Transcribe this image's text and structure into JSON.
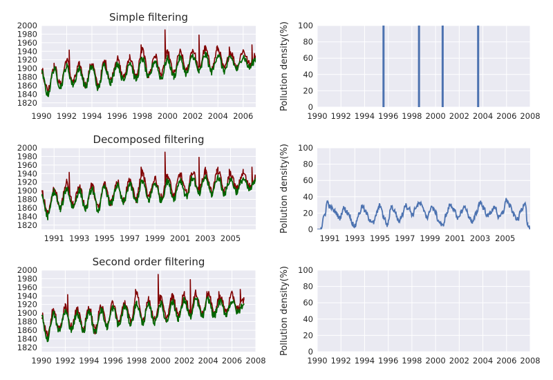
{
  "chart_data": [
    {
      "type": "line",
      "title": "Simple filtering",
      "xlabel": "",
      "ylabel": "",
      "xlim": [
        1990,
        2007
      ],
      "ylim": [
        1810,
        2000
      ],
      "x_ticks": [
        "1990",
        "1992",
        "1994",
        "1996",
        "1998",
        "2000",
        "2002",
        "2004",
        "2006"
      ],
      "x_tick_values": [
        1990,
        1992,
        1994,
        1996,
        1998,
        2000,
        2002,
        2004,
        2006
      ],
      "y_ticks": [
        "1820",
        "1840",
        "1860",
        "1880",
        "1900",
        "1920",
        "1940",
        "1960",
        "1980",
        "2000"
      ],
      "y_tick_values": [
        1820,
        1840,
        1860,
        1880,
        1900,
        1920,
        1940,
        1960,
        1980,
        2000
      ],
      "grid": true,
      "series": [
        {
          "role": "raw",
          "color": "#800000",
          "x": [
            1990,
            1990.5,
            1991,
            1991.5,
            1992,
            1992.5,
            1993,
            1993.5,
            1994,
            1994.5,
            1995,
            1995.5,
            1996,
            1996.5,
            1997,
            1997.5,
            1998,
            1998.5,
            1999,
            1999.5,
            2000,
            2000.5,
            2001,
            2001.5,
            2002,
            2002.5,
            2003,
            2003.5,
            2004,
            2004.5,
            2005,
            2005.5,
            2006,
            2006.5,
            2007
          ],
          "y": [
            1895,
            1850,
            1905,
            1862,
            1918,
            1868,
            1908,
            1862,
            1912,
            1860,
            1915,
            1874,
            1922,
            1878,
            1926,
            1880,
            1942,
            1884,
            1930,
            1884,
            1935,
            1888,
            1938,
            1894,
            1944,
            1899,
            1946,
            1898,
            1946,
            1899,
            1938,
            1904,
            1942,
            1910,
            1930
          ],
          "spikes": [
            [
              1990.1,
              1900
            ],
            [
              1992.2,
              1943
            ],
            [
              1997.9,
              1955
            ],
            [
              1999.8,
              1990
            ],
            [
              2002.5,
              1978
            ],
            [
              2003.9,
              1950
            ],
            [
              2004.9,
              1950
            ],
            [
              2006.7,
              1955
            ]
          ]
        },
        {
          "role": "filtered",
          "color": "#006400",
          "x": [
            1990,
            1990.5,
            1991,
            1991.5,
            1992,
            1992.5,
            1993,
            1993.5,
            1994,
            1994.5,
            1995,
            1995.5,
            1996,
            1996.5,
            1997,
            1997.5,
            1998,
            1998.5,
            1999,
            1999.5,
            2000,
            2000.5,
            2001,
            2001.5,
            2002,
            2002.5,
            2003,
            2003.5,
            2004,
            2004.5,
            2005,
            2005.5,
            2006,
            2006.5,
            2007
          ],
          "y": [
            1890,
            1840,
            1898,
            1858,
            1905,
            1862,
            1900,
            1858,
            1904,
            1855,
            1908,
            1868,
            1912,
            1872,
            1915,
            1875,
            1922,
            1878,
            1918,
            1878,
            1922,
            1882,
            1925,
            1888,
            1930,
            1892,
            1932,
            1892,
            1932,
            1894,
            1926,
            1898,
            1928,
            1902,
            1922
          ]
        }
      ]
    },
    {
      "type": "bar",
      "title": "",
      "xlabel": "",
      "ylabel": "Pollution density(%)",
      "xlim": [
        1990,
        2008
      ],
      "ylim": [
        0,
        100
      ],
      "x_ticks": [
        "1990",
        "1992",
        "1994",
        "1996",
        "1998",
        "2000",
        "2002",
        "2004",
        "2006",
        "2008"
      ],
      "x_tick_values": [
        1990,
        1992,
        1994,
        1996,
        1998,
        2000,
        2002,
        2004,
        2006,
        2008
      ],
      "y_ticks": [
        "0",
        "20",
        "40",
        "60",
        "80",
        "100"
      ],
      "y_tick_values": [
        0,
        20,
        40,
        60,
        80,
        100
      ],
      "grid": true,
      "series": [
        {
          "color": "#4c72b0",
          "x": [
            1995.6,
            1998.6,
            2000.6,
            2003.6
          ],
          "values": [
            100,
            100,
            100,
            100
          ]
        }
      ]
    },
    {
      "type": "line",
      "title": "Decomposed filtering",
      "xlabel": "",
      "ylabel": "",
      "xlim": [
        1990,
        2007
      ],
      "ylim": [
        1810,
        2000
      ],
      "x_ticks": [
        "1991",
        "1993",
        "1995",
        "1997",
        "1999",
        "2001",
        "2003",
        "2005"
      ],
      "x_tick_values": [
        1991,
        1993,
        1995,
        1997,
        1999,
        2001,
        2003,
        2005
      ],
      "y_ticks": [
        "1820",
        "1840",
        "1860",
        "1880",
        "1900",
        "1920",
        "1940",
        "1960",
        "1980",
        "2000"
      ],
      "y_tick_values": [
        1820,
        1840,
        1860,
        1880,
        1900,
        1920,
        1940,
        1960,
        1980,
        2000
      ],
      "grid": true,
      "series": [
        {
          "role": "raw",
          "color": "#800000",
          "x": [
            1990,
            1990.5,
            1991,
            1991.5,
            1992,
            1992.5,
            1993,
            1993.5,
            1994,
            1994.5,
            1995,
            1995.5,
            1996,
            1996.5,
            1997,
            1997.5,
            1998,
            1998.5,
            1999,
            1999.5,
            2000,
            2000.5,
            2001,
            2001.5,
            2002,
            2002.5,
            2003,
            2003.5,
            2004,
            2004.5,
            2005,
            2005.5,
            2006,
            2006.5,
            2007
          ],
          "y": [
            1895,
            1850,
            1905,
            1862,
            1918,
            1868,
            1908,
            1862,
            1912,
            1860,
            1915,
            1874,
            1922,
            1878,
            1926,
            1880,
            1942,
            1884,
            1930,
            1884,
            1935,
            1888,
            1938,
            1894,
            1944,
            1899,
            1946,
            1898,
            1946,
            1899,
            1938,
            1904,
            1942,
            1910,
            1930
          ],
          "spikes": [
            [
              1990.1,
              1900
            ],
            [
              1992.2,
              1943
            ],
            [
              1997.9,
              1955
            ],
            [
              1999.8,
              1990
            ],
            [
              2002.5,
              1978
            ],
            [
              2003.9,
              1950
            ],
            [
              2004.9,
              1950
            ],
            [
              2006.7,
              1955
            ]
          ]
        },
        {
          "role": "filtered",
          "color": "#006400",
          "x": [
            1990,
            1990.5,
            1991,
            1991.5,
            1992,
            1992.5,
            1993,
            1993.5,
            1994,
            1994.5,
            1995,
            1995.5,
            1996,
            1996.5,
            1997,
            1997.5,
            1998,
            1998.5,
            1999,
            1999.5,
            2000,
            2000.5,
            2001,
            2001.5,
            2002,
            2002.5,
            2003,
            2003.5,
            2004,
            2004.5,
            2005,
            2005.5,
            2006,
            2006.5,
            2007
          ],
          "y": [
            1890,
            1840,
            1898,
            1858,
            1905,
            1862,
            1900,
            1858,
            1904,
            1855,
            1908,
            1868,
            1912,
            1872,
            1915,
            1875,
            1922,
            1878,
            1918,
            1878,
            1922,
            1882,
            1925,
            1888,
            1930,
            1892,
            1932,
            1892,
            1932,
            1894,
            1926,
            1898,
            1928,
            1902,
            1922
          ]
        }
      ]
    },
    {
      "type": "line",
      "title": "",
      "xlabel": "",
      "ylabel": "Pollution density(%)",
      "xlim": [
        1990,
        2007
      ],
      "ylim": [
        0,
        100
      ],
      "x_ticks": [
        "1991",
        "1993",
        "1995",
        "1997",
        "1999",
        "2001",
        "2003",
        "2005"
      ],
      "x_tick_values": [
        1991,
        1993,
        1995,
        1997,
        1999,
        2001,
        2003,
        2005
      ],
      "y_ticks": [
        "0",
        "20",
        "40",
        "60",
        "80",
        "100"
      ],
      "y_tick_values": [
        0,
        20,
        40,
        60,
        80,
        100
      ],
      "grid": true,
      "series": [
        {
          "color": "#4c72b0",
          "x": [
            1990,
            1990.3,
            1990.6,
            1990.8,
            1991,
            1991.4,
            1991.8,
            1992.1,
            1992.5,
            1992.8,
            1993,
            1993.3,
            1993.6,
            1993.9,
            1994.2,
            1994.5,
            1994.8,
            1995.0,
            1995.3,
            1995.6,
            1995.9,
            1996.2,
            1996.5,
            1996.8,
            1997.0,
            1997.3,
            1997.6,
            1997.9,
            1998.2,
            1998.5,
            1998.8,
            1999.1,
            1999.4,
            1999.7,
            2000.0,
            2000.3,
            2000.6,
            2000.9,
            2001.2,
            2001.5,
            2001.8,
            2002.1,
            2002.4,
            2002.7,
            2003.0,
            2003.3,
            2003.6,
            2003.9,
            2004.2,
            2004.5,
            2004.8,
            2005.1,
            2005.4,
            2005.7,
            2006.0,
            2006.3,
            2006.6,
            2006.8,
            2007
          ],
          "y": [
            0,
            2,
            18,
            34,
            28,
            22,
            14,
            26,
            20,
            8,
            4,
            18,
            28,
            20,
            12,
            8,
            22,
            30,
            15,
            5,
            28,
            22,
            10,
            18,
            30,
            26,
            18,
            28,
            32,
            24,
            14,
            28,
            22,
            10,
            4,
            18,
            30,
            26,
            12,
            22,
            28,
            16,
            8,
            20,
            34,
            26,
            16,
            22,
            28,
            14,
            20,
            36,
            28,
            18,
            12,
            24,
            34,
            5,
            0
          ]
        }
      ]
    },
    {
      "type": "line",
      "title": "Second order filtering",
      "xlabel": "",
      "ylabel": "",
      "xlim": [
        1990,
        2008
      ],
      "ylim": [
        1810,
        2000
      ],
      "x_ticks": [
        "1990",
        "1992",
        "1994",
        "1996",
        "1998",
        "2000",
        "2002",
        "2004",
        "2006",
        "2008"
      ],
      "x_tick_values": [
        1990,
        1992,
        1994,
        1996,
        1998,
        2000,
        2002,
        2004,
        2006,
        2008
      ],
      "y_ticks": [
        "1820",
        "1840",
        "1860",
        "1880",
        "1900",
        "1920",
        "1940",
        "1960",
        "1980",
        "2000"
      ],
      "y_tick_values": [
        1820,
        1840,
        1860,
        1880,
        1900,
        1920,
        1940,
        1960,
        1980,
        2000
      ],
      "grid": true,
      "series": [
        {
          "role": "raw",
          "color": "#800000",
          "x": [
            1990,
            1990.5,
            1991,
            1991.5,
            1992,
            1992.5,
            1993,
            1993.5,
            1994,
            1994.5,
            1995,
            1995.5,
            1996,
            1996.5,
            1997,
            1997.5,
            1998,
            1998.5,
            1999,
            1999.5,
            2000,
            2000.5,
            2001,
            2001.5,
            2002,
            2002.5,
            2003,
            2003.5,
            2004,
            2004.5,
            2005,
            2005.5,
            2006,
            2006.5,
            2007
          ],
          "y": [
            1895,
            1850,
            1905,
            1862,
            1918,
            1868,
            1908,
            1862,
            1912,
            1860,
            1915,
            1874,
            1922,
            1878,
            1926,
            1880,
            1942,
            1884,
            1930,
            1884,
            1935,
            1888,
            1938,
            1894,
            1944,
            1899,
            1946,
            1898,
            1946,
            1899,
            1938,
            1904,
            1942,
            1910,
            1930
          ],
          "spikes": [
            [
              1990.1,
              1900
            ],
            [
              1992.2,
              1943
            ],
            [
              1997.9,
              1955
            ],
            [
              1999.8,
              1990
            ],
            [
              2002.5,
              1978
            ],
            [
              2003.9,
              1950
            ],
            [
              2004.9,
              1950
            ],
            [
              2006.7,
              1955
            ]
          ]
        },
        {
          "role": "filtered",
          "color": "#006400",
          "x": [
            1990,
            1990.5,
            1991,
            1991.5,
            1992,
            1992.5,
            1993,
            1993.5,
            1994,
            1994.5,
            1995,
            1995.5,
            1996,
            1996.5,
            1997,
            1997.5,
            1998,
            1998.5,
            1999,
            1999.5,
            2000,
            2000.5,
            2001,
            2001.5,
            2002,
            2002.5,
            2003,
            2003.5,
            2004,
            2004.5,
            2005,
            2005.5,
            2006,
            2006.5,
            2007
          ],
          "y": [
            1890,
            1840,
            1898,
            1858,
            1905,
            1862,
            1900,
            1858,
            1904,
            1855,
            1908,
            1868,
            1912,
            1872,
            1915,
            1875,
            1922,
            1878,
            1918,
            1878,
            1922,
            1882,
            1925,
            1888,
            1930,
            1892,
            1932,
            1892,
            1932,
            1894,
            1926,
            1898,
            1928,
            1902,
            1922
          ]
        }
      ]
    },
    {
      "type": "line",
      "title": "",
      "xlabel": "",
      "ylabel": "Pollution density(%)",
      "xlim": [
        1990,
        2008
      ],
      "ylim": [
        0,
        100
      ],
      "x_ticks": [
        "1990",
        "1992",
        "1994",
        "1996",
        "1998",
        "2000",
        "2002",
        "2004",
        "2006",
        "2008"
      ],
      "x_tick_values": [
        1990,
        1992,
        1994,
        1996,
        1998,
        2000,
        2002,
        2004,
        2006,
        2008
      ],
      "y_ticks": [
        "0",
        "20",
        "40",
        "60",
        "80",
        "100"
      ],
      "y_tick_values": [
        0,
        20,
        40,
        60,
        80,
        100
      ],
      "grid": true,
      "series": []
    }
  ]
}
